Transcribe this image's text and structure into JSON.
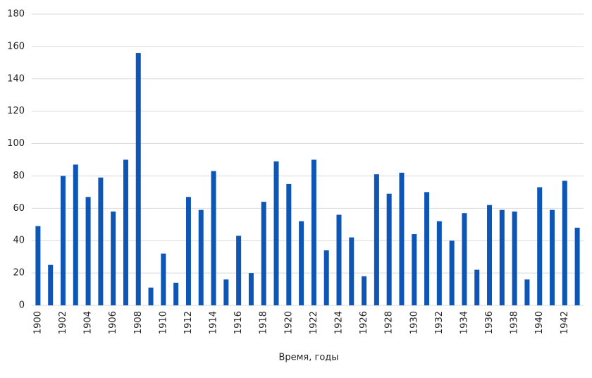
{
  "chart_data": {
    "type": "bar",
    "x_label": "Время, годы",
    "categories": [
      "1900",
      null,
      "1902",
      null,
      "1904",
      null,
      "1906",
      null,
      "1908",
      null,
      "1910",
      null,
      "1912",
      null,
      "1914",
      null,
      "1916",
      null,
      "1918",
      null,
      "1920",
      null,
      "1922",
      null,
      "1924",
      null,
      "1926",
      null,
      "1928",
      null,
      "1930",
      null,
      "1932",
      null,
      "1934",
      null,
      "1936",
      null,
      "1938",
      null,
      "1940",
      null,
      "1942",
      null
    ],
    "values": [
      49,
      25,
      80,
      87,
      67,
      79,
      58,
      90,
      156,
      11,
      32,
      14,
      67,
      59,
      83,
      16,
      43,
      20,
      64,
      89,
      75,
      52,
      90,
      34,
      56,
      42,
      18,
      81,
      69,
      82,
      44,
      70,
      52,
      40,
      57,
      22,
      62,
      59,
      58,
      16,
      73,
      59,
      77,
      48
    ],
    "color": "#0d56b5",
    "ylim": [
      0,
      180
    ],
    "yticks": [
      0,
      20,
      40,
      60,
      80,
      100,
      120,
      140,
      160,
      180
    ],
    "grid": true
  }
}
